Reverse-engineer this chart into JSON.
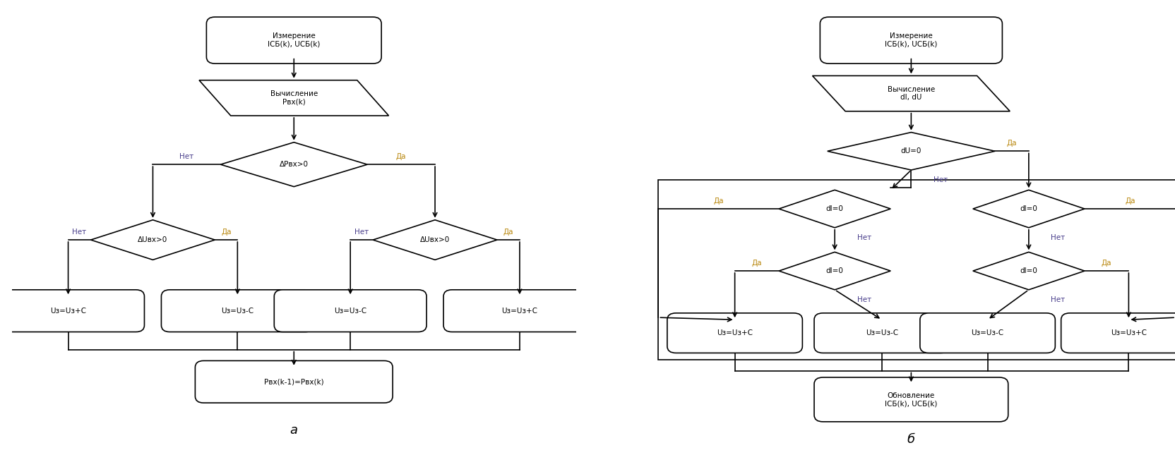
{
  "fig_width": 16.65,
  "fig_height": 6.55,
  "dpi": 100,
  "bg": "#ffffff",
  "lc": "#000000",
  "tc": "#000000",
  "yc": "#b8860b",
  "nc": "#483d8b",
  "fs": 7.5,
  "fl": 7.5,
  "caption_fs": 13,
  "chart_a": {
    "start_text": "Измерение\nIСБ(k), UСБ(k)",
    "calc_text": "Вычисление\nPвх(k)",
    "dp_text": "ΔPвх>0",
    "du_text": "ΔUвх>0",
    "out1_text": "Uз=Uз+C",
    "out2_text": "Uз=Uз-C",
    "out3_text": "Uз=Uз-C",
    "out4_text": "Uз=Uз+C",
    "update_text": "Pвх(k-1)=Pвх(k)",
    "yes": "Да",
    "no": "Нет",
    "caption": "а"
  },
  "chart_b": {
    "start_text": "Измерение\nIСБ(k), UСБ(k)",
    "calc_text": "Вычисление\ndI, dU",
    "dU_text": "dU=0",
    "dI1_text": "dI=0",
    "dI2_text": "dI=0",
    "dI3_text": "dI=0",
    "dI4_text": "dI=0",
    "out1_text": "Uз=Uз+C",
    "out2_text": "Uз=Uз-C",
    "out3_text": "Uз=Uз-C",
    "out4_text": "Uз=Uз+C",
    "update_text": "Обновление\nIСБ(k), UСБ(k)",
    "yes": "Да",
    "no": "Нет",
    "caption": "б"
  }
}
